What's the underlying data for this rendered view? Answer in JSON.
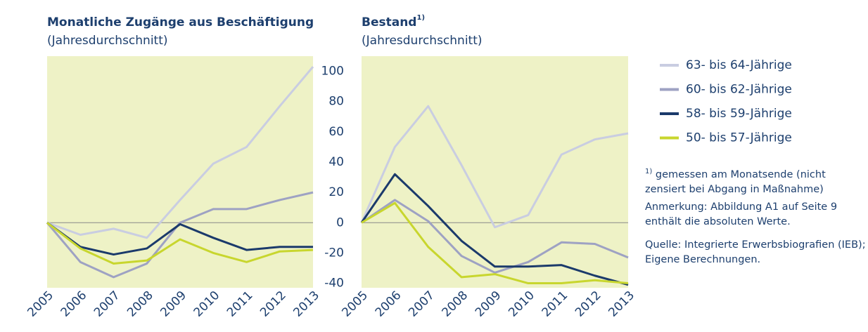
{
  "chart_data": [
    {
      "type": "line",
      "title": "Monatliche Zugänge aus Beschäftigung",
      "subtitle": "(Jahresdurchschnitt)",
      "categories": [
        "2005",
        "2006",
        "2007",
        "2008",
        "2009",
        "2010",
        "2011",
        "2012",
        "2013"
      ],
      "ylim": [
        -43,
        110
      ],
      "yticks": [
        100,
        80,
        60,
        40,
        20,
        0,
        -20,
        -40
      ],
      "background": "#eef2c6",
      "series": [
        {
          "name": "63- bis 64-Jährige",
          "color": "#c9cde1",
          "values": [
            0,
            -8,
            -4,
            -10,
            15,
            39,
            50,
            77,
            103
          ]
        },
        {
          "name": "60- bis 62-Jährige",
          "color": "#9ea2c3",
          "values": [
            0,
            -26,
            -36,
            -27,
            0,
            9,
            9,
            15,
            20
          ]
        },
        {
          "name": "58- bis 59-Jährige",
          "color": "#1b3a6b",
          "values": [
            0,
            -16,
            -21,
            -17,
            -1,
            -10,
            -18,
            -16,
            -16
          ]
        },
        {
          "name": "50- bis 57-Jährige",
          "color": "#c8d62e",
          "values": [
            0,
            -17,
            -27,
            -25,
            -11,
            -20,
            -26,
            -19,
            -18
          ]
        }
      ]
    },
    {
      "type": "line",
      "title": "Bestand",
      "title_note": "1)",
      "subtitle": "(Jahresdurchschnitt)",
      "categories": [
        "2005",
        "2006",
        "2007",
        "2008",
        "2009",
        "2010",
        "2011",
        "2012",
        "2013"
      ],
      "ylim": [
        -43,
        110
      ],
      "background": "#eef2c6",
      "series": [
        {
          "color": "#c9cde1",
          "values": [
            0,
            50,
            77,
            38,
            -3,
            5,
            45,
            55,
            59
          ]
        },
        {
          "color": "#9ea2c3",
          "values": [
            0,
            15,
            1,
            -22,
            -33,
            -26,
            -13,
            -14,
            -23
          ]
        },
        {
          "color": "#1b3a6b",
          "values": [
            0,
            32,
            11,
            -12,
            -29,
            -29,
            -28,
            -35,
            -41
          ]
        },
        {
          "color": "#c8d62e",
          "values": [
            0,
            13,
            -16,
            -36,
            -34,
            -40,
            -40,
            -38,
            -40
          ]
        }
      ]
    }
  ],
  "notes": {
    "marker": "1)",
    "footnote": "gemessen am Monatsende (nicht zensiert bei Abgang in Maßnahme)",
    "remark": "Anmerkung: Abbildung A1 auf Seite 9 enthält die absoluten Werte.",
    "source": "Quelle: Integrierte Erwerbsbiografien (IEB); Eigene Berechnungen."
  }
}
